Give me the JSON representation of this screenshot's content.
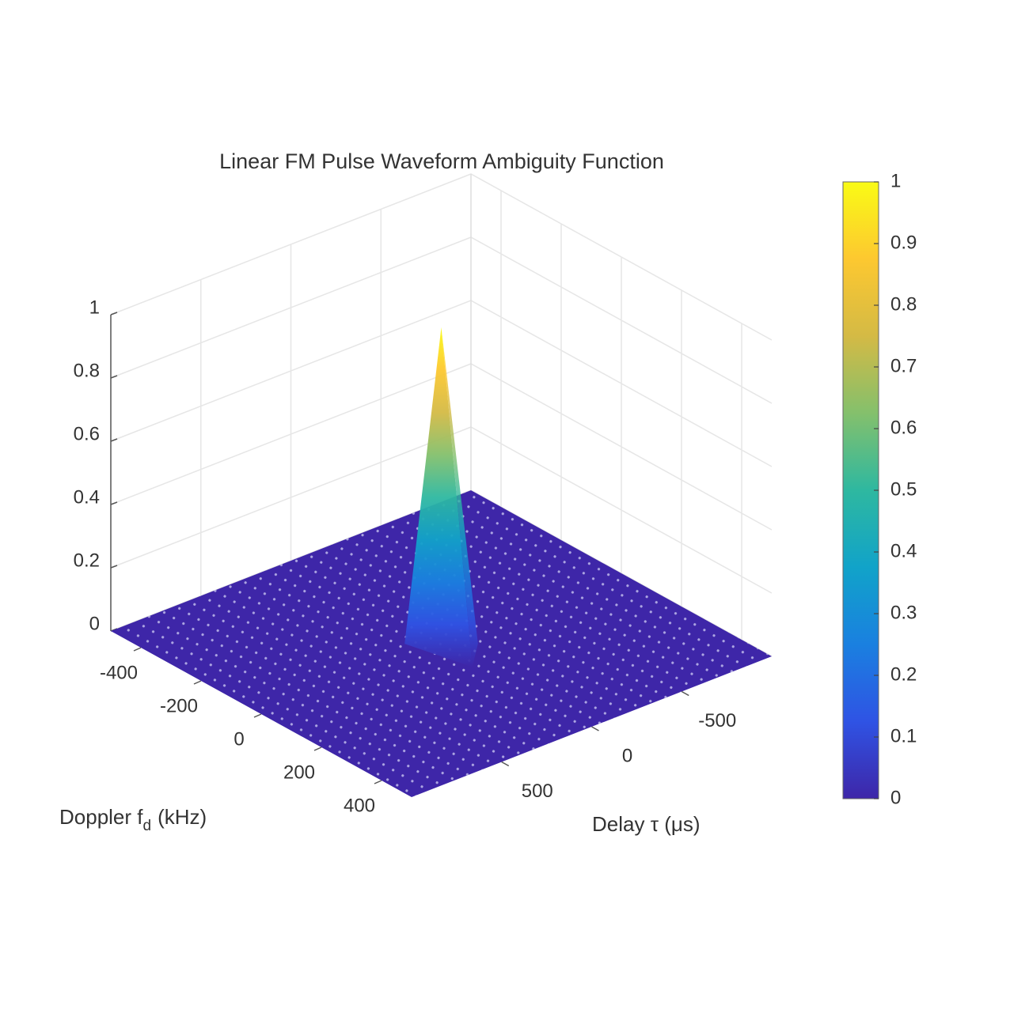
{
  "chart_data": {
    "type": "surface",
    "title": "Linear FM Pulse Waveform Ambiguity Function",
    "xlabel": "Delay τ (μs)",
    "ylabel": {
      "main": "Doppler f",
      "sub": "d",
      "unit": "(kHz)"
    },
    "xlim": [
      -1000,
      1000
    ],
    "xticks": [
      -500,
      0,
      500
    ],
    "ylim": [
      -500,
      500
    ],
    "yticks": [
      -400,
      -200,
      0,
      200,
      400
    ],
    "zlim": [
      0,
      1
    ],
    "zticks": [
      0,
      0.2,
      0.4,
      0.6,
      0.8,
      1
    ],
    "peak": {
      "delay": 0,
      "doppler": 0,
      "z": 1
    },
    "floor_z": 0,
    "grid": true,
    "colorbar": {
      "ticks": [
        0,
        0.1,
        0.2,
        0.3,
        0.4,
        0.5,
        0.6,
        0.7,
        0.8,
        0.9,
        1
      ]
    },
    "colormap": [
      "#3e26a8",
      "#2f53e4",
      "#1a80e0",
      "#11a3c9",
      "#2eb8a0",
      "#84c06c",
      "#d4ba45",
      "#fdc830",
      "#f9fb15"
    ]
  }
}
